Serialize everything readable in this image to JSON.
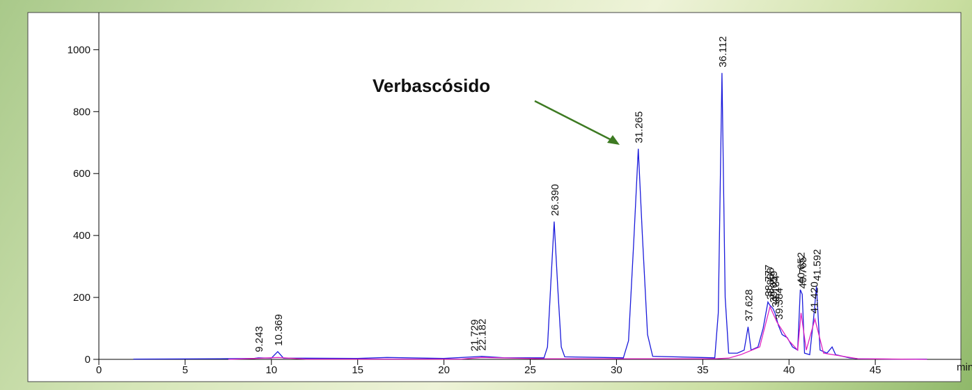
{
  "chart_data": {
    "type": "line",
    "xlabel": "min",
    "annotation": "Verbascósido",
    "xlim": [
      0,
      50
    ],
    "ylim": [
      0,
      1120
    ],
    "xticks": [
      0,
      5,
      10,
      15,
      20,
      25,
      30,
      35,
      40,
      45
    ],
    "yticks": [
      0,
      200,
      400,
      600,
      800,
      1000
    ],
    "x": [
      2,
      7,
      9,
      9.243,
      10,
      10.369,
      10.7,
      15,
      16.7,
      20,
      21.729,
      22.182,
      23.5,
      25,
      25.8,
      26.0,
      26.2,
      26.39,
      26.6,
      26.8,
      27.0,
      30.4,
      30.7,
      31.0,
      31.265,
      31.5,
      31.8,
      32.1,
      35.7,
      35.9,
      36.112,
      36.3,
      36.5,
      37.0,
      37.4,
      37.628,
      37.8,
      38.2,
      38.5,
      38.777,
      38.888,
      39.059,
      39.184,
      39.384,
      39.6,
      39.9,
      40.2,
      40.5,
      40.652,
      40.765,
      40.9,
      41.2,
      41.42,
      41.592,
      41.8,
      42.2,
      42.5,
      42.7,
      43.5,
      44,
      46,
      48
    ],
    "series": [
      {
        "color": "#1a1adb",
        "values": [
          1,
          2,
          3,
          5,
          4,
          25,
          4,
          3,
          6,
          3,
          8,
          10,
          5,
          5,
          5,
          40,
          250,
          445,
          230,
          40,
          8,
          5,
          60,
          380,
          680,
          400,
          80,
          10,
          5,
          150,
          925,
          200,
          20,
          20,
          30,
          105,
          30,
          40,
          100,
          185,
          175,
          165,
          150,
          110,
          80,
          70,
          40,
          30,
          225,
          210,
          20,
          15,
          130,
          235,
          30,
          20,
          40,
          15,
          5,
          2,
          1,
          1
        ]
      },
      {
        "color": "#e020c0",
        "x": [
          7.5,
          9,
          10.4,
          12,
          21,
          22.2,
          25.8,
          27,
          30.5,
          32,
          35.7,
          36.5,
          37.2,
          38.3,
          38.9,
          39.3,
          40.0,
          40.5,
          40.7,
          41.0,
          41.5,
          42,
          44,
          48
        ],
        "values": [
          0,
          3,
          6,
          1,
          1,
          6,
          2,
          2,
          2,
          2,
          2,
          4,
          15,
          40,
          170,
          120,
          60,
          30,
          150,
          30,
          130,
          20,
          2,
          0
        ]
      }
    ],
    "peaks": {
      "x": [
        9.243,
        10.369,
        21.729,
        22.182,
        26.39,
        31.265,
        36.112,
        37.628,
        38.777,
        38.888,
        39.059,
        39.184,
        39.384,
        40.652,
        40.765,
        41.42,
        41.592
      ],
      "values": [
        5,
        25,
        8,
        10,
        445,
        680,
        925,
        105,
        185,
        175,
        165,
        150,
        110,
        225,
        210,
        130,
        235
      ],
      "x_labels": [
        "9.243",
        "10.369",
        "21.729",
        "22.182",
        "26.390",
        "31.265",
        "36.112",
        "37.628",
        "38.777",
        "38.888",
        "39.059",
        "39.184",
        "39.384",
        "40.652",
        "40.765",
        "41.420",
        "41.592"
      ]
    }
  }
}
